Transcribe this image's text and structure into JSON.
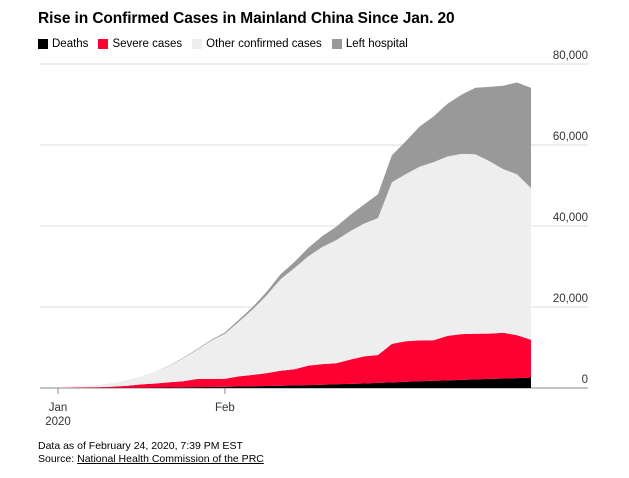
{
  "chart_data": {
    "type": "area",
    "title": "Rise in Confirmed Cases in Mainland China Since Jan. 20",
    "stacked": true,
    "legend_position": "top-left",
    "grid": true,
    "ylim": [
      0,
      80000
    ],
    "y_ticks": [
      {
        "value": 0,
        "label": "0"
      },
      {
        "value": 20000,
        "label": "20,000"
      },
      {
        "value": 40000,
        "label": "40,000"
      },
      {
        "value": 60000,
        "label": "60,000"
      },
      {
        "value": 80000,
        "label": "80,000"
      }
    ],
    "x_ticks": [
      {
        "date": "2020-01-20",
        "label": "Jan",
        "sublabel": "2020"
      },
      {
        "date": "2020-02-01",
        "label": "Feb",
        "sublabel": ""
      }
    ],
    "x": [
      "2020-01-20",
      "2020-01-21",
      "2020-01-22",
      "2020-01-23",
      "2020-01-24",
      "2020-01-25",
      "2020-01-26",
      "2020-01-27",
      "2020-01-28",
      "2020-01-29",
      "2020-01-30",
      "2020-01-31",
      "2020-02-01",
      "2020-02-02",
      "2020-02-03",
      "2020-02-04",
      "2020-02-05",
      "2020-02-06",
      "2020-02-07",
      "2020-02-08",
      "2020-02-09",
      "2020-02-10",
      "2020-02-11",
      "2020-02-12",
      "2020-02-13",
      "2020-02-14",
      "2020-02-15",
      "2020-02-16",
      "2020-02-17",
      "2020-02-18",
      "2020-02-19",
      "2020-02-20",
      "2020-02-21",
      "2020-02-22",
      "2020-02-23"
    ],
    "series": [
      {
        "name": "Deaths",
        "color": "#000000",
        "values": [
          6,
          9,
          17,
          25,
          41,
          56,
          80,
          106,
          132,
          170,
          213,
          259,
          304,
          361,
          425,
          490,
          563,
          636,
          722,
          811,
          908,
          1016,
          1113,
          1259,
          1380,
          1523,
          1665,
          1770,
          1868,
          2004,
          2118,
          2236,
          2345,
          2442,
          2592
        ]
      },
      {
        "name": "Severe cases",
        "color": "#ff0033",
        "values": [
          50,
          100,
          150,
          200,
          300,
          500,
          800,
          1000,
          1300,
          1500,
          2000,
          2000,
          2000,
          2500,
          2800,
          3200,
          3700,
          4000,
          4800,
          5100,
          5200,
          6000,
          6700,
          6900,
          9500,
          10000,
          10100,
          10000,
          11000,
          11300,
          11300,
          11200,
          11300,
          10600,
          9300
        ]
      },
      {
        "name": "Other confirmed cases",
        "color": "#eeeeee",
        "values": [
          240,
          300,
          400,
          600,
          900,
          1400,
          2000,
          3000,
          4000,
          5700,
          7200,
          9400,
          11100,
          13500,
          16200,
          19200,
          22600,
          25000,
          27000,
          28900,
          30400,
          31700,
          32800,
          33800,
          39900,
          41300,
          42900,
          44000,
          44300,
          44500,
          44300,
          42600,
          40400,
          39700,
          37500
        ]
      },
      {
        "name": "Left hospital",
        "color": "#999999",
        "values": [
          0,
          0,
          0,
          0,
          0,
          0,
          0,
          0,
          100,
          100,
          200,
          200,
          300,
          500,
          600,
          900,
          1200,
          1500,
          2100,
          2700,
          3300,
          4000,
          4700,
          5900,
          6700,
          8100,
          9900,
          11300,
          13000,
          14600,
          16400,
          18300,
          20600,
          22700,
          24700
        ]
      }
    ]
  },
  "footer": {
    "data_note": "Data as of February 24, 2020, 7:39 PM EST",
    "source_prefix": "Source: ",
    "source_link": "National Health Commission of the PRC"
  }
}
